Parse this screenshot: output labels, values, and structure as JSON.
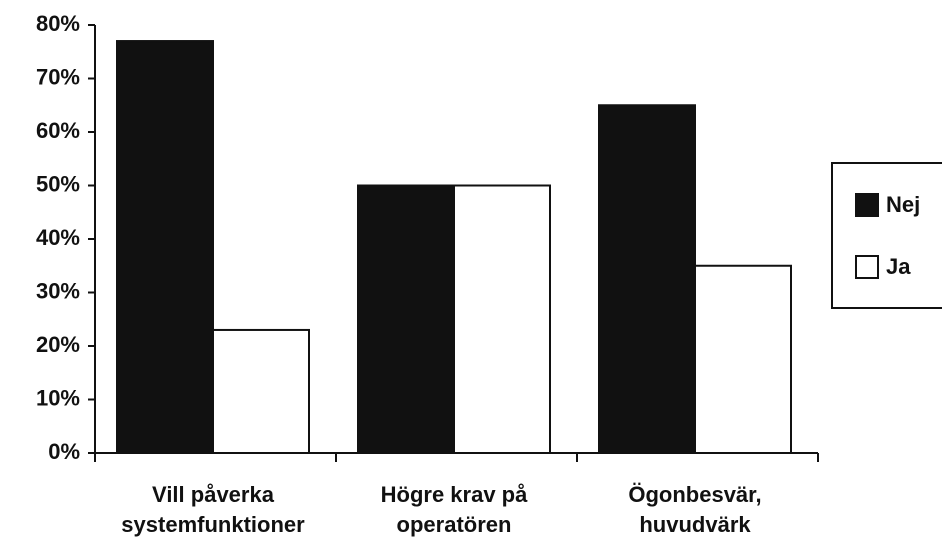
{
  "chart_data": {
    "type": "bar",
    "categories": [
      "Vill påverka systemfunktioner",
      "Högre krav på operatören",
      "Ögonbesvär, huvudvärk"
    ],
    "series": [
      {
        "name": "Nej",
        "color": "#111111",
        "values": [
          77,
          50,
          65
        ]
      },
      {
        "name": "Ja",
        "color": "#ffffff",
        "values": [
          23,
          50,
          35
        ]
      }
    ],
    "ylim": [
      0,
      80
    ],
    "yticks": [
      {
        "value": 0,
        "label": "0%"
      },
      {
        "value": 10,
        "label": "10%"
      },
      {
        "value": 20,
        "label": "20%"
      },
      {
        "value": 30,
        "label": "30%"
      },
      {
        "value": 40,
        "label": "40%"
      },
      {
        "value": 50,
        "label": "50%"
      },
      {
        "value": 60,
        "label": "60%"
      },
      {
        "value": 70,
        "label": "70%"
      },
      {
        "value": 80,
        "label": "80%"
      }
    ],
    "legend": "right"
  }
}
